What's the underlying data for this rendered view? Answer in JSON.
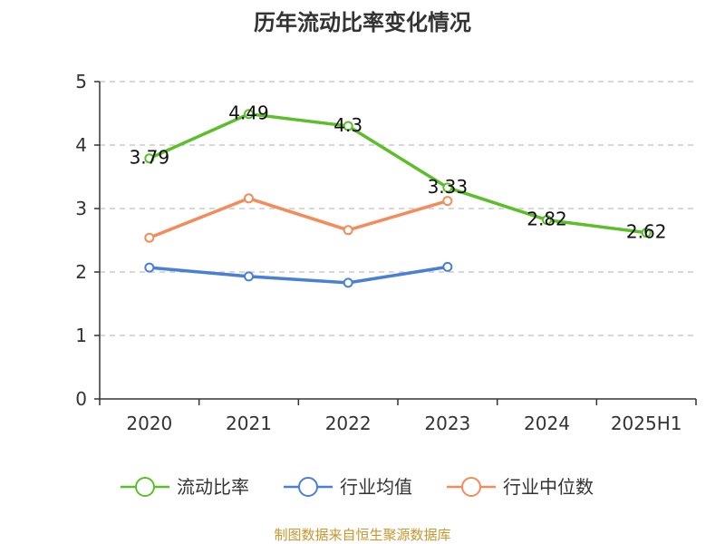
{
  "chart_data": {
    "type": "line",
    "title": "历年流动比率变化情况",
    "categories": [
      "2020",
      "2021",
      "2022",
      "2023",
      "2024",
      "2025H1"
    ],
    "ylim": [
      0,
      5
    ],
    "yticks": [
      0,
      1,
      2,
      3,
      4,
      5
    ],
    "grid": true,
    "legend_position": "bottom",
    "series": [
      {
        "name": "流动比率",
        "color": "#5cbf2a",
        "values": [
          3.79,
          4.49,
          4.3,
          3.33,
          2.82,
          2.62
        ],
        "value_labels": [
          "3.79",
          "4.49",
          "4.3",
          "3.33",
          "2.82",
          "2.62"
        ]
      },
      {
        "name": "行业均值",
        "color": "#4a7fd6",
        "values": [
          2.07,
          1.93,
          1.83,
          2.08,
          null,
          null
        ]
      },
      {
        "name": "行业中位数",
        "color": "#f28c5a",
        "values": [
          2.54,
          3.16,
          2.66,
          3.12,
          null,
          null
        ]
      }
    ]
  },
  "source_note": "制图数据来自恒生聚源数据库",
  "colors": {
    "source_note": "#c8962e",
    "axis": "#333333",
    "grid": "#cccccc"
  }
}
